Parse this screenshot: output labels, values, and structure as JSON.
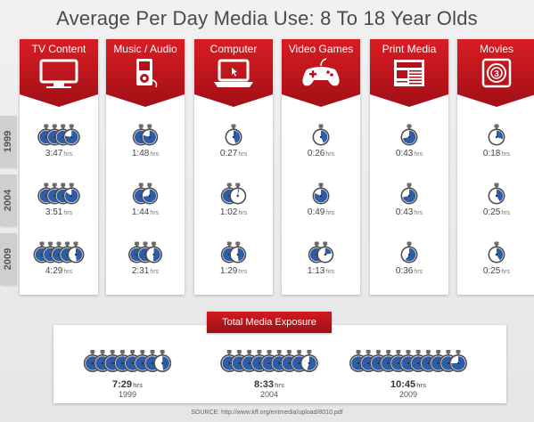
{
  "title": "Average Per Day Media Use: 8 To 18 Year Olds",
  "source": "SOURCE: http://www.kff.org/entmedia/upload/8010.pdf",
  "unit_label": "hrs",
  "colors": {
    "accent": "#c8141c",
    "clock_blue": "#2e5da8",
    "clock_face": "#ffffff"
  },
  "chart_data": {
    "type": "table",
    "title": "Average Per Day Media Use: 8 To 18 Year Olds",
    "years": [
      "1999",
      "2004",
      "2009"
    ],
    "categories": [
      {
        "name": "TV Content",
        "icon": "tv-icon",
        "values": [
          "3:47",
          "3:51",
          "4:29"
        ],
        "hours": [
          3.783,
          3.85,
          4.483
        ]
      },
      {
        "name": "Music / Audio",
        "icon": "music-player-icon",
        "values": [
          "1:48",
          "1:44",
          "2:31"
        ],
        "hours": [
          1.8,
          1.733,
          2.517
        ]
      },
      {
        "name": "Computer",
        "icon": "laptop-icon",
        "values": [
          "0:27",
          "1:02",
          "1:29"
        ],
        "hours": [
          0.45,
          1.033,
          1.483
        ]
      },
      {
        "name": "Video Games",
        "icon": "gamepad-icon",
        "values": [
          "0:26",
          "0:49",
          "1:13"
        ],
        "hours": [
          0.433,
          0.817,
          1.217
        ]
      },
      {
        "name": "Print Media",
        "icon": "newspaper-icon",
        "values": [
          "0:43",
          "0:43",
          "0:36"
        ],
        "hours": [
          0.717,
          0.717,
          0.6
        ]
      },
      {
        "name": "Movies",
        "icon": "film-reel-icon",
        "values": [
          "0:18",
          "0:25",
          "0:25"
        ],
        "hours": [
          0.3,
          0.417,
          0.417
        ]
      }
    ],
    "total": {
      "title": "Total Media Exposure",
      "values": [
        "7:29",
        "8:33",
        "10:45"
      ],
      "hours": [
        7.483,
        8.55,
        10.75
      ],
      "years": [
        "1999",
        "2004",
        "2009"
      ]
    }
  }
}
